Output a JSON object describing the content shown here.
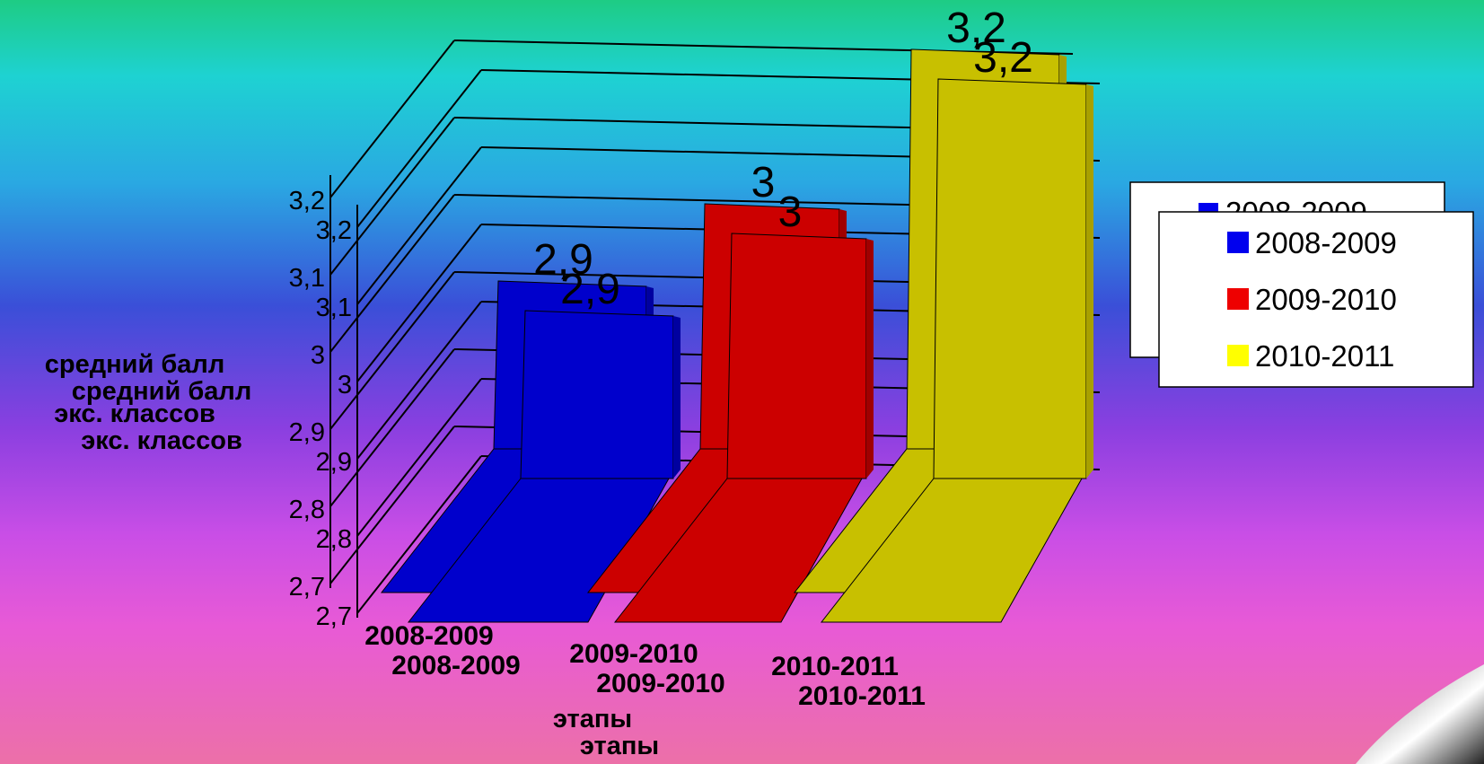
{
  "chart_data": {
    "type": "bar",
    "categories": [
      "2008-2009",
      "2009-2010",
      "2010-2011"
    ],
    "series": [
      {
        "name": "2008-2009",
        "values": [
          2.9,
          null,
          null
        ],
        "color": "#0000cc"
      },
      {
        "name": "2009-2010",
        "values": [
          null,
          3.0,
          null
        ],
        "color": "#cc0000"
      },
      {
        "name": "2010-2011",
        "values": [
          null,
          null,
          3.2
        ],
        "color": "#c8c000"
      }
    ],
    "data_labels": [
      "2,9",
      "3",
      "3,2"
    ],
    "yticks": [
      "2,7",
      "2,8",
      "2,9",
      "3",
      "3,1",
      "3,2"
    ],
    "ylim": [
      2.7,
      3.2
    ],
    "ylabel_line1": "средний балл",
    "ylabel_line2": "экс. классов",
    "xlabel": "этапы",
    "legend": {
      "position": "right",
      "entries": [
        "2008-2009",
        "2009-2010",
        "2010-2011"
      ],
      "colors": [
        "#0000ee",
        "#ee0000",
        "#ffff00"
      ]
    },
    "grid": true
  }
}
